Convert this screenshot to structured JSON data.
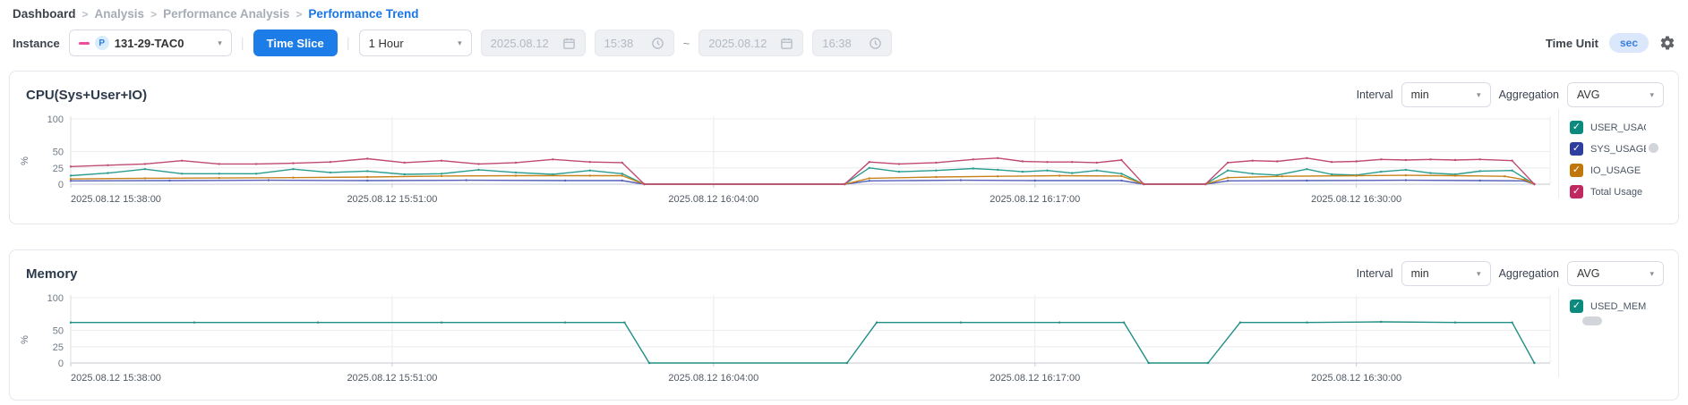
{
  "breadcrumb": {
    "separator": ">",
    "items": [
      {
        "label": "Dashboard",
        "state": "link"
      },
      {
        "label": "Analysis",
        "state": "muted"
      },
      {
        "label": "Performance Analysis",
        "state": "muted"
      },
      {
        "label": "Performance Trend",
        "state": "active"
      }
    ]
  },
  "toolbar": {
    "instance_label": "Instance",
    "instance_badge": "P",
    "instance_value": "131-29-TAC0",
    "time_slice_label": "Time Slice",
    "range_value": "1 Hour",
    "date_from": "2025.08.12",
    "time_from": "15:38",
    "range_separator": "~",
    "date_to": "2025.08.12",
    "time_to": "16:38",
    "time_unit_label": "Time Unit",
    "time_unit_value": "sec"
  },
  "panel_labels": {
    "interval": "Interval",
    "aggregation": "Aggregation"
  },
  "chart_data": [
    {
      "type": "line",
      "title": "CPU(Sys+User+IO)",
      "interval": "min",
      "aggregation": "AVG",
      "ylabel": "%",
      "ylim": [
        0,
        100
      ],
      "yticks": [
        0,
        25,
        50,
        100
      ],
      "grid": true,
      "legend_position": "right",
      "legend_scrollbar": true,
      "x_domain": [
        0,
        59.8
      ],
      "xticks": [
        {
          "t": 0,
          "label": "2025.08.12 15:38:00"
        },
        {
          "t": 13,
          "label": "2025.08.12 15:51:00"
        },
        {
          "t": 26,
          "label": "2025.08.12 16:04:00"
        },
        {
          "t": 39,
          "label": "2025.08.12 16:17:00"
        },
        {
          "t": 52,
          "label": "2025.08.12 16:30:00"
        }
      ],
      "series": [
        {
          "name": "USER_USAGE",
          "color": "#2a9d8f",
          "cb": "#0b8a7d",
          "checked": true,
          "values": [
            [
              0,
              13
            ],
            [
              1.5,
              17
            ],
            [
              3,
              23
            ],
            [
              4.5,
              16
            ],
            [
              6,
              16
            ],
            [
              7.5,
              16
            ],
            [
              9,
              23
            ],
            [
              10.5,
              18
            ],
            [
              12,
              20
            ],
            [
              13.5,
              15
            ],
            [
              15,
              16
            ],
            [
              16.5,
              22
            ],
            [
              18,
              18
            ],
            [
              19.5,
              15
            ],
            [
              21,
              21
            ],
            [
              22.3,
              16
            ],
            [
              23.2,
              0
            ],
            [
              31.3,
              0
            ],
            [
              32.3,
              25
            ],
            [
              33.5,
              19
            ],
            [
              35,
              21
            ],
            [
              36.5,
              24
            ],
            [
              37.5,
              22
            ],
            [
              38.5,
              19
            ],
            [
              39.5,
              21
            ],
            [
              40.5,
              17
            ],
            [
              41.5,
              21
            ],
            [
              42.5,
              16
            ],
            [
              43.4,
              0
            ],
            [
              45.9,
              0
            ],
            [
              46.8,
              21
            ],
            [
              47.8,
              16
            ],
            [
              48.8,
              14
            ],
            [
              50,
              23
            ],
            [
              51,
              15
            ],
            [
              52,
              14
            ],
            [
              53,
              19
            ],
            [
              54,
              22
            ],
            [
              55,
              17
            ],
            [
              56,
              15
            ],
            [
              57,
              20
            ],
            [
              58.3,
              21
            ],
            [
              59.2,
              0
            ]
          ]
        },
        {
          "name": "SYS_USAGE",
          "color": "#5560b8",
          "cb": "#2e3e9e",
          "checked": true,
          "values": [
            [
              0,
              5
            ],
            [
              4,
              5.5
            ],
            [
              8,
              6
            ],
            [
              12,
              5.5
            ],
            [
              16,
              6
            ],
            [
              20,
              5.5
            ],
            [
              22.3,
              5.5
            ],
            [
              23.2,
              0
            ],
            [
              31.3,
              0
            ],
            [
              32.3,
              5
            ],
            [
              36,
              6
            ],
            [
              39,
              5.5
            ],
            [
              42.5,
              5.5
            ],
            [
              43.4,
              0
            ],
            [
              45.9,
              0
            ],
            [
              46.8,
              5
            ],
            [
              50,
              5.5
            ],
            [
              54,
              6
            ],
            [
              57,
              5.5
            ],
            [
              58.8,
              5
            ],
            [
              59.2,
              0
            ]
          ]
        },
        {
          "name": "IO_USAGE",
          "color": "#c8821a",
          "cb": "#c1760a",
          "checked": true,
          "values": [
            [
              0,
              8
            ],
            [
              3,
              9
            ],
            [
              6,
              9.5
            ],
            [
              9,
              10
            ],
            [
              12,
              11
            ],
            [
              15,
              12.5
            ],
            [
              18,
              13
            ],
            [
              21,
              13
            ],
            [
              22.3,
              13
            ],
            [
              23.2,
              0
            ],
            [
              31.3,
              0
            ],
            [
              32.3,
              9
            ],
            [
              35,
              11
            ],
            [
              37.5,
              12
            ],
            [
              40,
              13
            ],
            [
              42.5,
              12.5
            ],
            [
              43.4,
              0
            ],
            [
              45.9,
              0
            ],
            [
              46.8,
              10
            ],
            [
              49,
              12
            ],
            [
              52,
              13
            ],
            [
              54,
              13.5
            ],
            [
              56,
              13
            ],
            [
              58,
              12
            ],
            [
              58.8,
              7
            ],
            [
              59.2,
              0
            ]
          ]
        },
        {
          "name": "Total Usage",
          "color": "#c04a72",
          "cb": "#c0295f",
          "checked": true,
          "values": [
            [
              0,
              27
            ],
            [
              1.5,
              29
            ],
            [
              3,
              31
            ],
            [
              4.5,
              36
            ],
            [
              6,
              31
            ],
            [
              7.5,
              31
            ],
            [
              9,
              32
            ],
            [
              10.5,
              34
            ],
            [
              12,
              39
            ],
            [
              13.5,
              33
            ],
            [
              15,
              36
            ],
            [
              16.5,
              31
            ],
            [
              18,
              33
            ],
            [
              19.5,
              38
            ],
            [
              21,
              34
            ],
            [
              22.3,
              33
            ],
            [
              23.2,
              0
            ],
            [
              31.3,
              0
            ],
            [
              32.3,
              34
            ],
            [
              33.5,
              31
            ],
            [
              35,
              33
            ],
            [
              36.5,
              38
            ],
            [
              37.5,
              40
            ],
            [
              38.5,
              35
            ],
            [
              39.5,
              34
            ],
            [
              40.5,
              34
            ],
            [
              41.5,
              33
            ],
            [
              42.5,
              37
            ],
            [
              43.4,
              0
            ],
            [
              45.9,
              0
            ],
            [
              46.8,
              33
            ],
            [
              47.8,
              36
            ],
            [
              48.8,
              35
            ],
            [
              50,
              40
            ],
            [
              51,
              34
            ],
            [
              52,
              35
            ],
            [
              53,
              38
            ],
            [
              54,
              37
            ],
            [
              55,
              38
            ],
            [
              56,
              37
            ],
            [
              57,
              38
            ],
            [
              58.3,
              36
            ],
            [
              59.2,
              0
            ]
          ]
        }
      ]
    },
    {
      "type": "line",
      "title": "Memory",
      "interval": "min",
      "aggregation": "AVG",
      "ylabel": "%",
      "ylim": [
        0,
        100
      ],
      "yticks": [
        0,
        25,
        50,
        100
      ],
      "grid": true,
      "legend_position": "right",
      "legend_pill": true,
      "x_domain": [
        0,
        59.8
      ],
      "xticks": [
        {
          "t": 0,
          "label": "2025.08.12 15:38:00"
        },
        {
          "t": 13,
          "label": "2025.08.12 15:51:00"
        },
        {
          "t": 26,
          "label": "2025.08.12 16:04:00"
        },
        {
          "t": 39,
          "label": "2025.08.12 16:17:00"
        },
        {
          "t": 52,
          "label": "2025.08.12 16:30:00"
        }
      ],
      "series": [
        {
          "name": "USED_MEMORY",
          "color": "#1f8f84",
          "cb": "#0b8a7d",
          "checked": true,
          "values": [
            [
              0,
              62
            ],
            [
              5,
              62
            ],
            [
              10,
              62
            ],
            [
              15,
              62
            ],
            [
              20,
              62
            ],
            [
              22.4,
              62
            ],
            [
              23.4,
              0
            ],
            [
              31.4,
              0
            ],
            [
              32.6,
              62
            ],
            [
              36,
              62
            ],
            [
              40,
              62
            ],
            [
              42.6,
              62
            ],
            [
              43.6,
              0
            ],
            [
              46,
              0
            ],
            [
              47.3,
              62
            ],
            [
              50,
              62
            ],
            [
              53,
              63
            ],
            [
              56,
              62
            ],
            [
              58.3,
              62
            ],
            [
              59.2,
              0
            ]
          ]
        }
      ]
    }
  ]
}
